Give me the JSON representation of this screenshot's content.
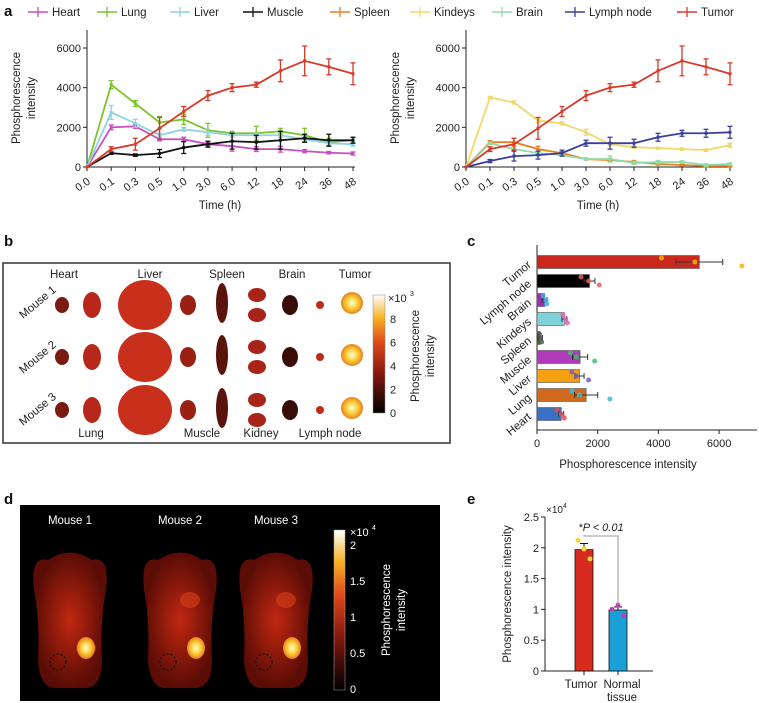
{
  "panel_labels": [
    "a",
    "b",
    "c",
    "d",
    "e"
  ],
  "colors": {
    "Heart": "#c94fbf",
    "Lung": "#7cc42a",
    "Liver": "#8fd3e0",
    "Muscle": "#111111",
    "Spleen": "#e8801e",
    "Kindeys": "#f2d86a",
    "Brain": "#8fdcaa",
    "Lymph node": "#3a3f9c",
    "Tumor": "#d63a2a"
  },
  "legend": [
    "Heart",
    "Lung",
    "Liver",
    "Muscle",
    "Spleen",
    "Kindeys",
    "Brain",
    "Lymph node",
    "Tumor"
  ],
  "chart_data": [
    {
      "type": "line",
      "panel": "a-left",
      "categories": [
        "0.0",
        "0.1",
        "0.3",
        "0.5",
        "1.0",
        "3.0",
        "6.0",
        "12",
        "18",
        "24",
        "36",
        "48"
      ],
      "xlabel": "Time (h)",
      "ylabel": [
        "Phosphorescence",
        "intensity"
      ],
      "ylim": [
        0,
        6000
      ],
      "yticks": [
        "0",
        "2000",
        "4000",
        "6000"
      ],
      "series": [
        {
          "name": "Heart",
          "values": [
            0,
            2000,
            2050,
            1400,
            1400,
            1150,
            1050,
            900,
            900,
            800,
            720,
            680
          ],
          "err": [
            0,
            120,
            100,
            80,
            100,
            100,
            250,
            120,
            150,
            80,
            60,
            80
          ]
        },
        {
          "name": "Lung",
          "values": [
            0,
            4150,
            3200,
            2250,
            2400,
            1850,
            1700,
            1700,
            1800,
            1600,
            1250,
            1350
          ],
          "err": [
            0,
            200,
            150,
            300,
            250,
            350,
            100,
            350,
            150,
            350,
            200,
            150
          ]
        },
        {
          "name": "Liver",
          "values": [
            0,
            2750,
            2200,
            1600,
            1900,
            1750,
            1600,
            1600,
            1600,
            1400,
            1200,
            1150
          ],
          "err": [
            0,
            350,
            200,
            100,
            100,
            150,
            100,
            100,
            100,
            100,
            100,
            100
          ]
        },
        {
          "name": "Muscle",
          "values": [
            0,
            700,
            600,
            680,
            980,
            1150,
            1300,
            1250,
            1350,
            1450,
            1350,
            1350
          ],
          "err": [
            0,
            60,
            60,
            200,
            300,
            150,
            400,
            350,
            450,
            200,
            300,
            150
          ]
        },
        {
          "name": "Tumor",
          "values": [
            0,
            900,
            1150,
            1950,
            2800,
            3600,
            4000,
            4150,
            4850,
            5350,
            5050,
            4700
          ],
          "err": [
            0,
            120,
            300,
            550,
            250,
            250,
            200,
            130,
            550,
            750,
            400,
            550
          ]
        }
      ]
    },
    {
      "type": "line",
      "panel": "a-right",
      "categories": [
        "0.0",
        "0.1",
        "0.3",
        "0.5",
        "1.0",
        "3.0",
        "6.0",
        "12",
        "18",
        "24",
        "36",
        "48"
      ],
      "xlabel": "Time (h)",
      "ylabel": [
        "Phosphorescence",
        "intensity"
      ],
      "ylim": [
        0,
        6000
      ],
      "yticks": [
        "0",
        "2000",
        "4000",
        "6000"
      ],
      "series": [
        {
          "name": "Spleen",
          "values": [
            0,
            1250,
            1250,
            900,
            700,
            400,
            350,
            250,
            150,
            100,
            50,
            50
          ],
          "err": [
            0,
            80,
            200,
            150,
            80,
            50,
            80,
            80,
            50,
            50,
            30,
            30
          ]
        },
        {
          "name": "Kindeys",
          "values": [
            0,
            3500,
            3250,
            2350,
            2200,
            1750,
            1150,
            1000,
            950,
            900,
            850,
            1100
          ],
          "err": [
            0,
            60,
            80,
            100,
            80,
            150,
            80,
            60,
            50,
            60,
            60,
            100
          ]
        },
        {
          "name": "Brain",
          "values": [
            0,
            1200,
            900,
            700,
            600,
            400,
            400,
            200,
            250,
            250,
            100,
            150
          ],
          "err": [
            0,
            60,
            60,
            60,
            60,
            60,
            150,
            80,
            80,
            60,
            60,
            60
          ]
        },
        {
          "name": "Lymph node",
          "values": [
            0,
            300,
            550,
            600,
            700,
            1200,
            1200,
            1200,
            1500,
            1700,
            1700,
            1750
          ],
          "err": [
            0,
            80,
            250,
            200,
            150,
            150,
            300,
            200,
            200,
            150,
            200,
            300
          ]
        },
        {
          "name": "Tumor",
          "values": [
            0,
            900,
            1150,
            1950,
            2800,
            3600,
            4000,
            4150,
            4850,
            5350,
            5050,
            4700
          ],
          "err": [
            0,
            120,
            300,
            550,
            250,
            250,
            200,
            130,
            550,
            750,
            400,
            550
          ]
        }
      ]
    },
    {
      "type": "bar",
      "panel": "c",
      "orientation": "horizontal",
      "categories": [
        "Tumor",
        "Lymph node",
        "Brain",
        "Kindeys",
        "Spleen",
        "Muscle",
        "Liver",
        "Lung",
        "Heart"
      ],
      "values": [
        5350,
        1730,
        250,
        900,
        100,
        1420,
        1400,
        1620,
        800
      ],
      "err": [
        770,
        180,
        80,
        80,
        80,
        250,
        150,
        380,
        80
      ],
      "bar_colors": [
        "#c8281e",
        "#000000",
        "#9b30b0",
        "#7fd3d8",
        "#3d6b22",
        "#b03bb8",
        "#f5a010",
        "#d2691e",
        "#3a6fc4"
      ],
      "points": [
        [
          4100,
          5200,
          6750
        ],
        [
          1450,
          1700,
          2050
        ],
        [
          200,
          300,
          320
        ],
        [
          850,
          950,
          1000
        ],
        [
          80,
          120,
          150
        ],
        [
          1100,
          1300,
          1900
        ],
        [
          1150,
          1300,
          1700
        ],
        [
          1150,
          1400,
          2400
        ],
        [
          650,
          800,
          900
        ]
      ],
      "point_colors": [
        "#f5b400",
        "#e06060",
        "#40b0e0",
        "#e060b0",
        "#555555",
        "#40c070",
        "#7060c0",
        "#40b8e0",
        "#e05050"
      ],
      "xlabel": "Phosphorescence intensity",
      "xlim": [
        0,
        7000
      ],
      "xticks": [
        "0",
        "2000",
        "4000",
        "6000"
      ]
    },
    {
      "type": "bar",
      "panel": "e",
      "categories": [
        "Tumor",
        "Normal tissue"
      ],
      "category_lines": [
        [
          "Tumor"
        ],
        [
          "Normal",
          "tissue"
        ]
      ],
      "values": [
        1.97,
        0.99
      ],
      "err": [
        0.1,
        0.05
      ],
      "points": [
        [
          2.12,
          1.98,
          1.82
        ],
        [
          1.0,
          1.07,
          0.9
        ]
      ],
      "bar_colors": [
        "#d62b1e",
        "#1a9fd6"
      ],
      "point_colors": [
        "#f5d040",
        "#c040b0"
      ],
      "ylabel": "Phosphorescence intensity",
      "ylim": [
        0,
        2.5
      ],
      "yticks": [
        "0",
        "0.5",
        "1",
        "1.5",
        "2",
        "2.5"
      ],
      "multiplier": "×10",
      "multiplier_exp": "4",
      "annotation": "*P < 0.01"
    }
  ],
  "panel_b": {
    "top_labels": [
      "Heart",
      "Liver",
      "Spleen",
      "Brain",
      "Tumor"
    ],
    "bottom_labels": [
      "Lung",
      "Muscle",
      "Kidney",
      "Lymph node"
    ],
    "rows": [
      "Mouse 1",
      "Mouse 2",
      "Mouse 3"
    ],
    "colorbar": {
      "ticks": [
        "0",
        "2",
        "4",
        "6",
        "8"
      ],
      "multiplier": "×10",
      "multiplier_exp": "3",
      "label": [
        "Phosphorescence",
        "intensity"
      ]
    }
  },
  "panel_d": {
    "mice": [
      "Mouse 1",
      "Mouse 2",
      "Mouse 3"
    ],
    "colorbar": {
      "ticks": [
        "0",
        "0.5",
        "1",
        "1.5",
        "2"
      ],
      "multiplier": "×10",
      "multiplier_exp": "4",
      "label": [
        "Phosphorescence",
        "intensity"
      ]
    }
  }
}
